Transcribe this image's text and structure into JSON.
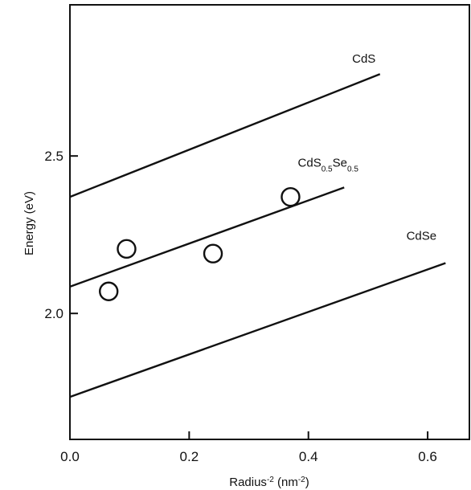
{
  "chart_data": {
    "type": "scatter",
    "title": "",
    "xlabel": "Radius",
    "xlabel_sup": "-2",
    "xlabel_unit_open": " (nm",
    "xlabel_unit_sup": "-2",
    "xlabel_unit_close": ")",
    "ylabel": "Energy (eV)",
    "xlim": [
      0.0,
      0.67
    ],
    "ylim": [
      1.6,
      2.98
    ],
    "x_ticks": [
      0.0,
      0.2,
      0.4,
      0.6
    ],
    "x_tick_labels": [
      "0.0",
      "0.2",
      "0.4",
      "0.6"
    ],
    "y_ticks": [
      2.0,
      2.5
    ],
    "y_tick_labels": [
      "2.0",
      "2.5"
    ],
    "grid": false,
    "lines": [
      {
        "name": "CdS",
        "x": [
          0.0,
          0.52
        ],
        "y": [
          2.37,
          2.76
        ]
      },
      {
        "name": "CdS0.5Se0.5",
        "x": [
          0.0,
          0.46
        ],
        "y": [
          2.085,
          2.4
        ]
      },
      {
        "name": "CdSe",
        "x": [
          0.0,
          0.63
        ],
        "y": [
          1.735,
          2.16
        ]
      }
    ],
    "series_labels": [
      {
        "line": 0,
        "parts": [
          {
            "t": "CdS"
          }
        ]
      },
      {
        "line": 1,
        "parts": [
          {
            "t": "CdS"
          },
          {
            "t": "0.5",
            "sub": true
          },
          {
            "t": "Se"
          },
          {
            "t": "0.5",
            "sub": true
          }
        ]
      },
      {
        "line": 2,
        "parts": [
          {
            "t": "CdSe"
          }
        ]
      }
    ],
    "points": [
      {
        "x": 0.065,
        "y": 2.07
      },
      {
        "x": 0.095,
        "y": 2.205
      },
      {
        "x": 0.24,
        "y": 2.19
      },
      {
        "x": 0.37,
        "y": 2.37
      }
    ]
  }
}
